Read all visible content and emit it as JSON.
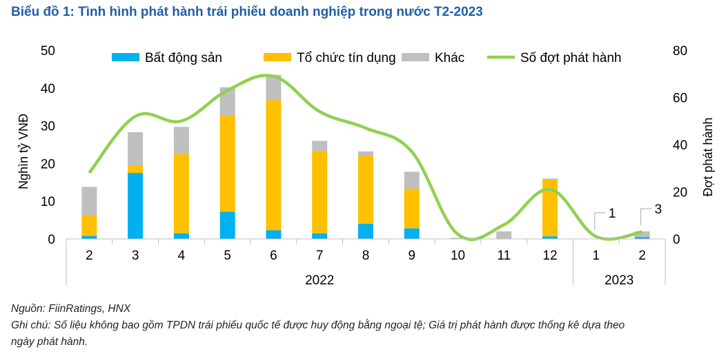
{
  "title": "Biểu đồ 1: Tình hình phát hành trái phiếu doanh nghiệp trong nước T2-2023",
  "source": "Nguồn: FiinRatings, HNX",
  "note_line1": "Ghi chú: Số liệu không bao gồm TPDN trái phiếu quốc tế được huy động bằng ngoại tệ; Giá trị phát hành được thống kê dựa theo",
  "note_line2": "ngày phát hành.",
  "chart_data": {
    "type": "bar",
    "stacked": true,
    "categories": [
      "2",
      "3",
      "4",
      "5",
      "6",
      "7",
      "8",
      "9",
      "10",
      "11",
      "12",
      "1",
      "2"
    ],
    "groups": [
      {
        "label": "2022",
        "from": 0,
        "to": 10
      },
      {
        "label": "2023",
        "from": 11,
        "to": 12
      }
    ],
    "series": [
      {
        "name": "Bất động sản",
        "kind": "bar",
        "axis": "left",
        "color": "#00b0f0",
        "values": [
          0.8,
          17.5,
          1.5,
          7.2,
          2.3,
          1.5,
          4.0,
          2.8,
          0.0,
          0.0,
          0.7,
          0.0,
          0.5
        ]
      },
      {
        "name": "Tổ chức tín dụng",
        "kind": "bar",
        "axis": "left",
        "color": "#ffc000",
        "values": [
          5.5,
          2.0,
          21.0,
          25.5,
          34.5,
          21.8,
          18.0,
          10.5,
          0.0,
          0.0,
          15.0,
          0.0,
          0.0
        ]
      },
      {
        "name": "Khác",
        "kind": "bar",
        "axis": "left",
        "color": "#bfbfbf",
        "values": [
          7.5,
          8.8,
          7.2,
          7.5,
          6.7,
          2.7,
          1.2,
          4.5,
          0.3,
          2.0,
          0.3,
          0.0,
          1.5
        ]
      },
      {
        "name": "Số đợt phát hành",
        "kind": "line",
        "axis": "right",
        "color": "#92d050",
        "values": [
          28,
          52,
          50,
          63,
          69,
          54,
          47,
          37,
          2,
          6,
          21,
          1,
          3
        ]
      }
    ],
    "ylabel": "Nghìn tỷ VNĐ",
    "y2label": "Đợt phát hành",
    "ylim": [
      0,
      50
    ],
    "y2lim": [
      0,
      80
    ],
    "yticks": [
      0,
      10,
      20,
      30,
      40,
      50
    ],
    "y2ticks": [
      0,
      20,
      40,
      60,
      80
    ],
    "annotations": [
      {
        "index": 11,
        "text": "1"
      },
      {
        "index": 12,
        "text": "3"
      }
    ],
    "legend_position": "top",
    "grid": false
  }
}
